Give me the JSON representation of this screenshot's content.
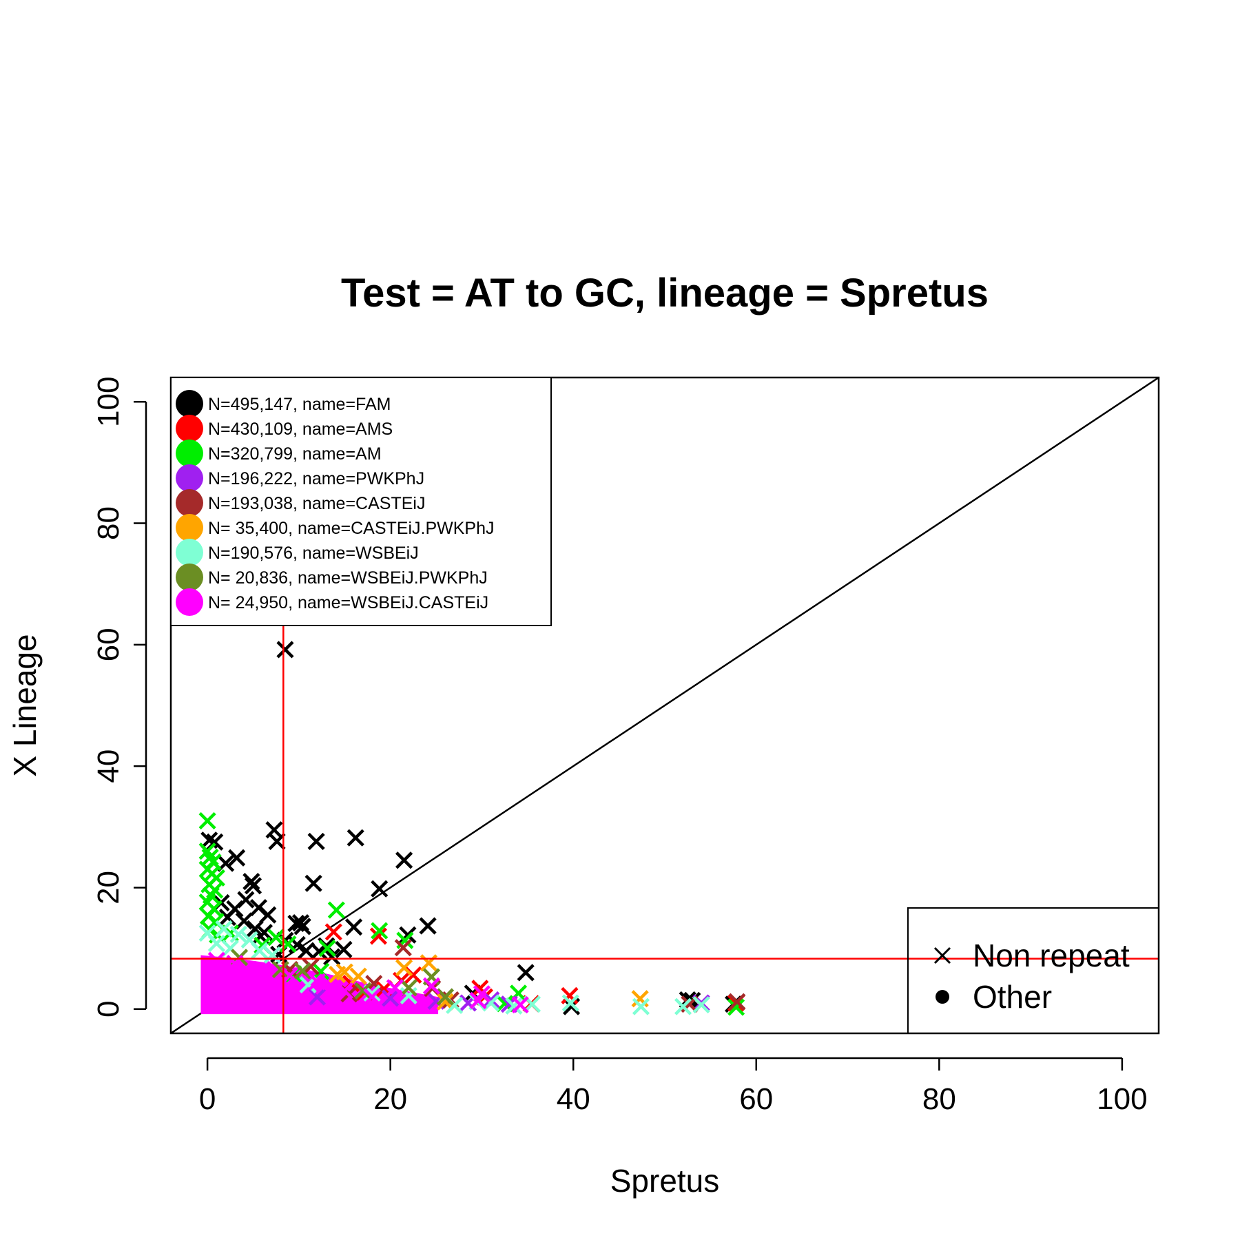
{
  "chart_data": {
    "type": "scatter",
    "title": "Test = AT to GC, lineage = Spretus",
    "xlabel": "Spretus",
    "ylabel": "X Lineage",
    "xlim": [
      -4,
      104
    ],
    "ylim": [
      -4,
      104
    ],
    "xticks": [
      0,
      20,
      40,
      60,
      80,
      100
    ],
    "yticks": [
      0,
      20,
      40,
      60,
      80,
      100
    ],
    "reference_lines": {
      "diagonal": "y = x",
      "vline_x": 8.3,
      "hline_y": 8.3,
      "line_color": "#ff0000"
    },
    "legend_groups": [
      {
        "label": "N=495,147, name=FAM",
        "color": "#000000"
      },
      {
        "label": "N=430,109, name=AMS",
        "color": "#ff0000"
      },
      {
        "label": "N=320,799, name=AM",
        "color": "#00ee00"
      },
      {
        "label": "N=196,222, name=PWKPhJ",
        "color": "#a020f0"
      },
      {
        "label": "N=193,038, name=CASTEiJ",
        "color": "#a52a2a"
      },
      {
        "label": "N= 35,400, name=CASTEiJ.PWKPhJ",
        "color": "#ffa500"
      },
      {
        "label": "N=190,576, name=WSBEiJ",
        "color": "#7fffd4"
      },
      {
        "label": "N= 20,836, name=WSBEiJ.PWKPhJ",
        "color": "#6b8e23"
      },
      {
        "label": "N= 24,950, name=WSBEiJ.CASTEiJ",
        "color": "#ff00ff"
      }
    ],
    "marker_legend": [
      {
        "label": "Non repeat",
        "marker": "x"
      },
      {
        "label": "Other",
        "marker": "dot"
      }
    ],
    "series": [
      {
        "name": "FAM",
        "color": "#000000",
        "points": [
          [
            8.5,
            59.2
          ],
          [
            0.2,
            27.8
          ],
          [
            0.8,
            27.5
          ],
          [
            7.3,
            29.5
          ],
          [
            7.6,
            27.6
          ],
          [
            16.2,
            28.2
          ],
          [
            11.9,
            27.6
          ],
          [
            3.2,
            24.9
          ],
          [
            2.0,
            24.0
          ],
          [
            21.5,
            24.5
          ],
          [
            4.8,
            21.0
          ],
          [
            5.0,
            20.3
          ],
          [
            11.6,
            20.7
          ],
          [
            18.8,
            19.8
          ],
          [
            1.5,
            17.5
          ],
          [
            3.0,
            16.5
          ],
          [
            5.6,
            16.7
          ],
          [
            6.6,
            15.5
          ],
          [
            2.2,
            15.1
          ],
          [
            4.0,
            14.5
          ],
          [
            5.2,
            13.2
          ],
          [
            5.8,
            12.0
          ],
          [
            6.2,
            12.6
          ],
          [
            9.7,
            14.1
          ],
          [
            10.4,
            13.6
          ],
          [
            10.2,
            14.2
          ],
          [
            16.0,
            13.5
          ],
          [
            24.1,
            13.7
          ],
          [
            21.9,
            12.2
          ],
          [
            8.5,
            11.3
          ],
          [
            9.8,
            10.6
          ],
          [
            10.8,
            9.6
          ],
          [
            7.8,
            9.0
          ],
          [
            14.9,
            9.8
          ],
          [
            12.2,
            9.5
          ],
          [
            13.6,
            8.6
          ],
          [
            34.8,
            6.0
          ],
          [
            53.0,
            1.4
          ],
          [
            52.5,
            1.5
          ],
          [
            57.5,
            0.8
          ],
          [
            39.8,
            0.4
          ],
          [
            29.0,
            2.6
          ],
          [
            26.0,
            2.0
          ],
          [
            13.0,
            10.4
          ],
          [
            4.2,
            18.0
          ]
        ]
      },
      {
        "name": "AMS",
        "color": "#ff0000",
        "points": [
          [
            13.8,
            12.7
          ],
          [
            18.7,
            12.0
          ],
          [
            21.2,
            4.7
          ],
          [
            19.3,
            3.3
          ],
          [
            15.7,
            4.2
          ],
          [
            29.8,
            3.4
          ],
          [
            39.6,
            2.2
          ],
          [
            30.3,
            2.0
          ],
          [
            35.4,
            0.9
          ],
          [
            57.8,
            1.0
          ],
          [
            22.5,
            5.6
          ],
          [
            17.2,
            2.8
          ]
        ]
      },
      {
        "name": "AM",
        "color": "#00ee00",
        "points": [
          [
            0.0,
            31.0
          ],
          [
            0.0,
            26.0
          ],
          [
            0.3,
            25.0
          ],
          [
            0.6,
            24.2
          ],
          [
            0.0,
            23.0
          ],
          [
            0.5,
            22.3
          ],
          [
            1.0,
            21.6
          ],
          [
            0.2,
            20.5
          ],
          [
            0.8,
            19.6
          ],
          [
            0.4,
            18.7
          ],
          [
            0.0,
            17.6
          ],
          [
            0.7,
            16.5
          ],
          [
            0.1,
            15.3
          ],
          [
            0.9,
            14.4
          ],
          [
            0.3,
            13.0
          ],
          [
            1.1,
            12.2
          ],
          [
            14.1,
            16.3
          ],
          [
            18.8,
            12.9
          ],
          [
            21.6,
            11.3
          ],
          [
            7.5,
            11.8
          ],
          [
            8.8,
            10.7
          ],
          [
            9.4,
            5.8
          ],
          [
            12.4,
            6.2
          ],
          [
            13.1,
            10.0
          ],
          [
            34.0,
            2.6
          ],
          [
            57.8,
            0.3
          ],
          [
            32.5,
            0.9
          ],
          [
            2.5,
            12.5
          ],
          [
            6.0,
            10.5
          ]
        ]
      },
      {
        "name": "PWKPhJ",
        "color": "#a020f0",
        "points": [
          [
            54.0,
            1.0
          ],
          [
            25.0,
            1.3
          ],
          [
            28.5,
            1.0
          ],
          [
            20.0,
            1.8
          ],
          [
            31.0,
            1.5
          ],
          [
            12.0,
            2.0
          ],
          [
            33.0,
            0.8
          ]
        ]
      },
      {
        "name": "CASTEiJ",
        "color": "#a52a2a",
        "points": [
          [
            21.4,
            10.1
          ],
          [
            11.3,
            7.0
          ],
          [
            18.2,
            4.2
          ],
          [
            24.6,
            3.4
          ],
          [
            52.7,
            0.8
          ],
          [
            57.9,
            1.2
          ],
          [
            26.6,
            1.5
          ],
          [
            15.5,
            2.5
          ],
          [
            9.0,
            6.5
          ]
        ]
      },
      {
        "name": "CASTEiJ.PWKPhJ",
        "color": "#ffa500",
        "points": [
          [
            24.2,
            7.6
          ],
          [
            21.5,
            6.8
          ],
          [
            15.0,
            6.1
          ],
          [
            14.2,
            5.7
          ],
          [
            47.3,
            1.7
          ],
          [
            26.0,
            1.2
          ],
          [
            16.5,
            5.4
          ]
        ]
      },
      {
        "name": "WSBEiJ",
        "color": "#7fffd4",
        "points": [
          [
            0.0,
            12.5
          ],
          [
            1.8,
            13.2
          ],
          [
            3.4,
            12.3
          ],
          [
            4.6,
            11.4
          ],
          [
            5.7,
            9.6
          ],
          [
            7.1,
            8.9
          ],
          [
            2.5,
            10.0
          ],
          [
            31.0,
            1.0
          ],
          [
            33.5,
            0.5
          ],
          [
            35.5,
            0.8
          ],
          [
            39.7,
            1.0
          ],
          [
            47.4,
            0.4
          ],
          [
            52.0,
            0.4
          ],
          [
            54.0,
            0.7
          ],
          [
            29.5,
            1.2
          ],
          [
            27.0,
            0.6
          ],
          [
            22.0,
            2.2
          ],
          [
            18.0,
            2.6
          ],
          [
            11.0,
            4.0
          ],
          [
            1.0,
            10.8
          ]
        ]
      },
      {
        "name": "WSBEiJ.PWKPhJ",
        "color": "#6b8e23",
        "points": [
          [
            24.5,
            5.3
          ],
          [
            22.0,
            3.5
          ],
          [
            10.4,
            6.3
          ],
          [
            26.0,
            2.0
          ],
          [
            17.0,
            3.0
          ],
          [
            8.0,
            6.5
          ],
          [
            3.5,
            8.5
          ]
        ]
      },
      {
        "name": "WSBEiJ.CASTEiJ",
        "color": "#ff00ff",
        "points": [
          [
            30.0,
            2.5
          ],
          [
            29.6,
            1.4
          ],
          [
            34.2,
            0.7
          ],
          [
            24.5,
            3.8
          ],
          [
            20.5,
            3.5
          ],
          [
            18.0,
            2.0
          ],
          [
            15.0,
            3.0
          ],
          [
            12.0,
            4.5
          ],
          [
            9.0,
            5.5
          ],
          [
            6.0,
            6.5
          ],
          [
            3.0,
            7.5
          ],
          [
            1.0,
            8.0
          ]
        ]
      }
    ],
    "dense_regions": [
      {
        "name": "WSBEiJ.CASTEiJ",
        "color": "#ff00ff",
        "x_range": [
          -0.5,
          25
        ],
        "y_max_at_x0": 8.5,
        "y_min": -0.5
      }
    ]
  }
}
